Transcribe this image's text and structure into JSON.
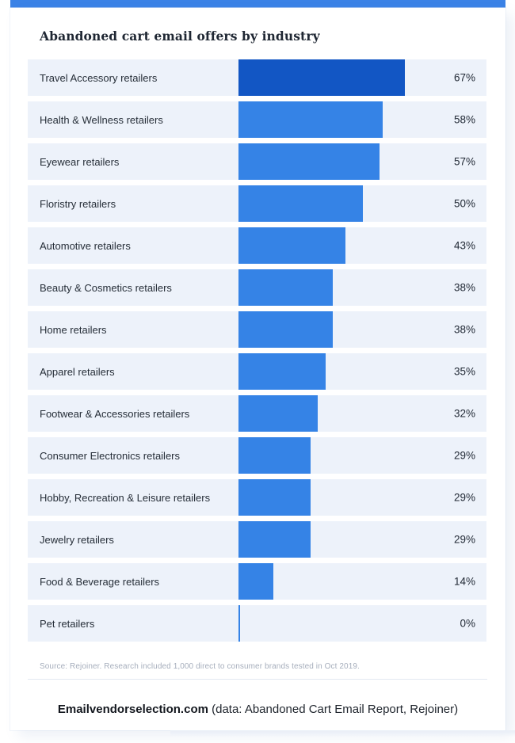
{
  "colors": {
    "accent": "#3b82e6",
    "bar_highlight": "#1256c4",
    "bar_normal": "#3583e6",
    "row_background": "#edf2fa"
  },
  "chart": {
    "title": "Abandoned cart email offers by industry",
    "source": "Source: Rejoiner. Research included 1,000 direct to consumer brands tested in Oct 2019."
  },
  "chart_data": {
    "type": "bar",
    "orientation": "horizontal",
    "title": "Abandoned cart email offers by industry",
    "xlabel": "",
    "ylabel": "",
    "xlim": [
      0,
      100
    ],
    "value_suffix": "%",
    "grid": false,
    "legend": "none",
    "highlight_index": 0,
    "categories": [
      "Travel Accessory retailers",
      "Health & Wellness retailers",
      "Eyewear retailers",
      "Floristry retailers",
      "Automotive retailers",
      "Beauty & Cosmetics retailers",
      "Home retailers",
      "Apparel retailers",
      "Footwear & Accessories retailers",
      "Consumer Electronics retailers",
      "Hobby, Recreation & Leisure retailers",
      "Jewelry retailers",
      "Food & Beverage retailers",
      "Pet retailers"
    ],
    "values": [
      67,
      58,
      57,
      50,
      43,
      38,
      38,
      35,
      32,
      29,
      29,
      29,
      14,
      0
    ],
    "value_labels": [
      "67%",
      "58%",
      "57%",
      "50%",
      "43%",
      "38%",
      "38%",
      "35%",
      "32%",
      "29%",
      "29%",
      "29%",
      "14%",
      "0%"
    ]
  },
  "footer": {
    "brand": "Emailvendorselection.com",
    "suffix": " (data: Abandoned Cart Email Report, Rejoiner)"
  }
}
